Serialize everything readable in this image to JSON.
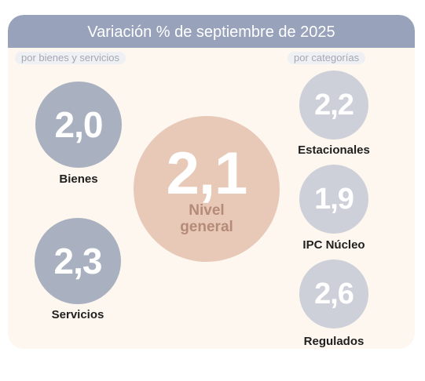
{
  "title": "Variación % de septiembre de 2025",
  "left_tag": "por bienes y servicios",
  "right_tag": "por categorías",
  "center": {
    "value": "2,1",
    "label_line1": "Nivel",
    "label_line2": "general"
  },
  "left_items": [
    {
      "value": "2,0",
      "label": "Bienes"
    },
    {
      "value": "2,3",
      "label": "Servicios"
    }
  ],
  "right_items": [
    {
      "value": "2,2",
      "label": "Estacionales"
    },
    {
      "value": "1,9",
      "label": "IPC Núcleo"
    },
    {
      "value": "2,6",
      "label": "Regulados"
    }
  ],
  "colors": {
    "header": "#98a2bb",
    "left_circle": "#a9b0bf",
    "center_circle": "#e8c9b8",
    "center_label": "#b58a78",
    "right_circle": "#cdd0d8"
  }
}
